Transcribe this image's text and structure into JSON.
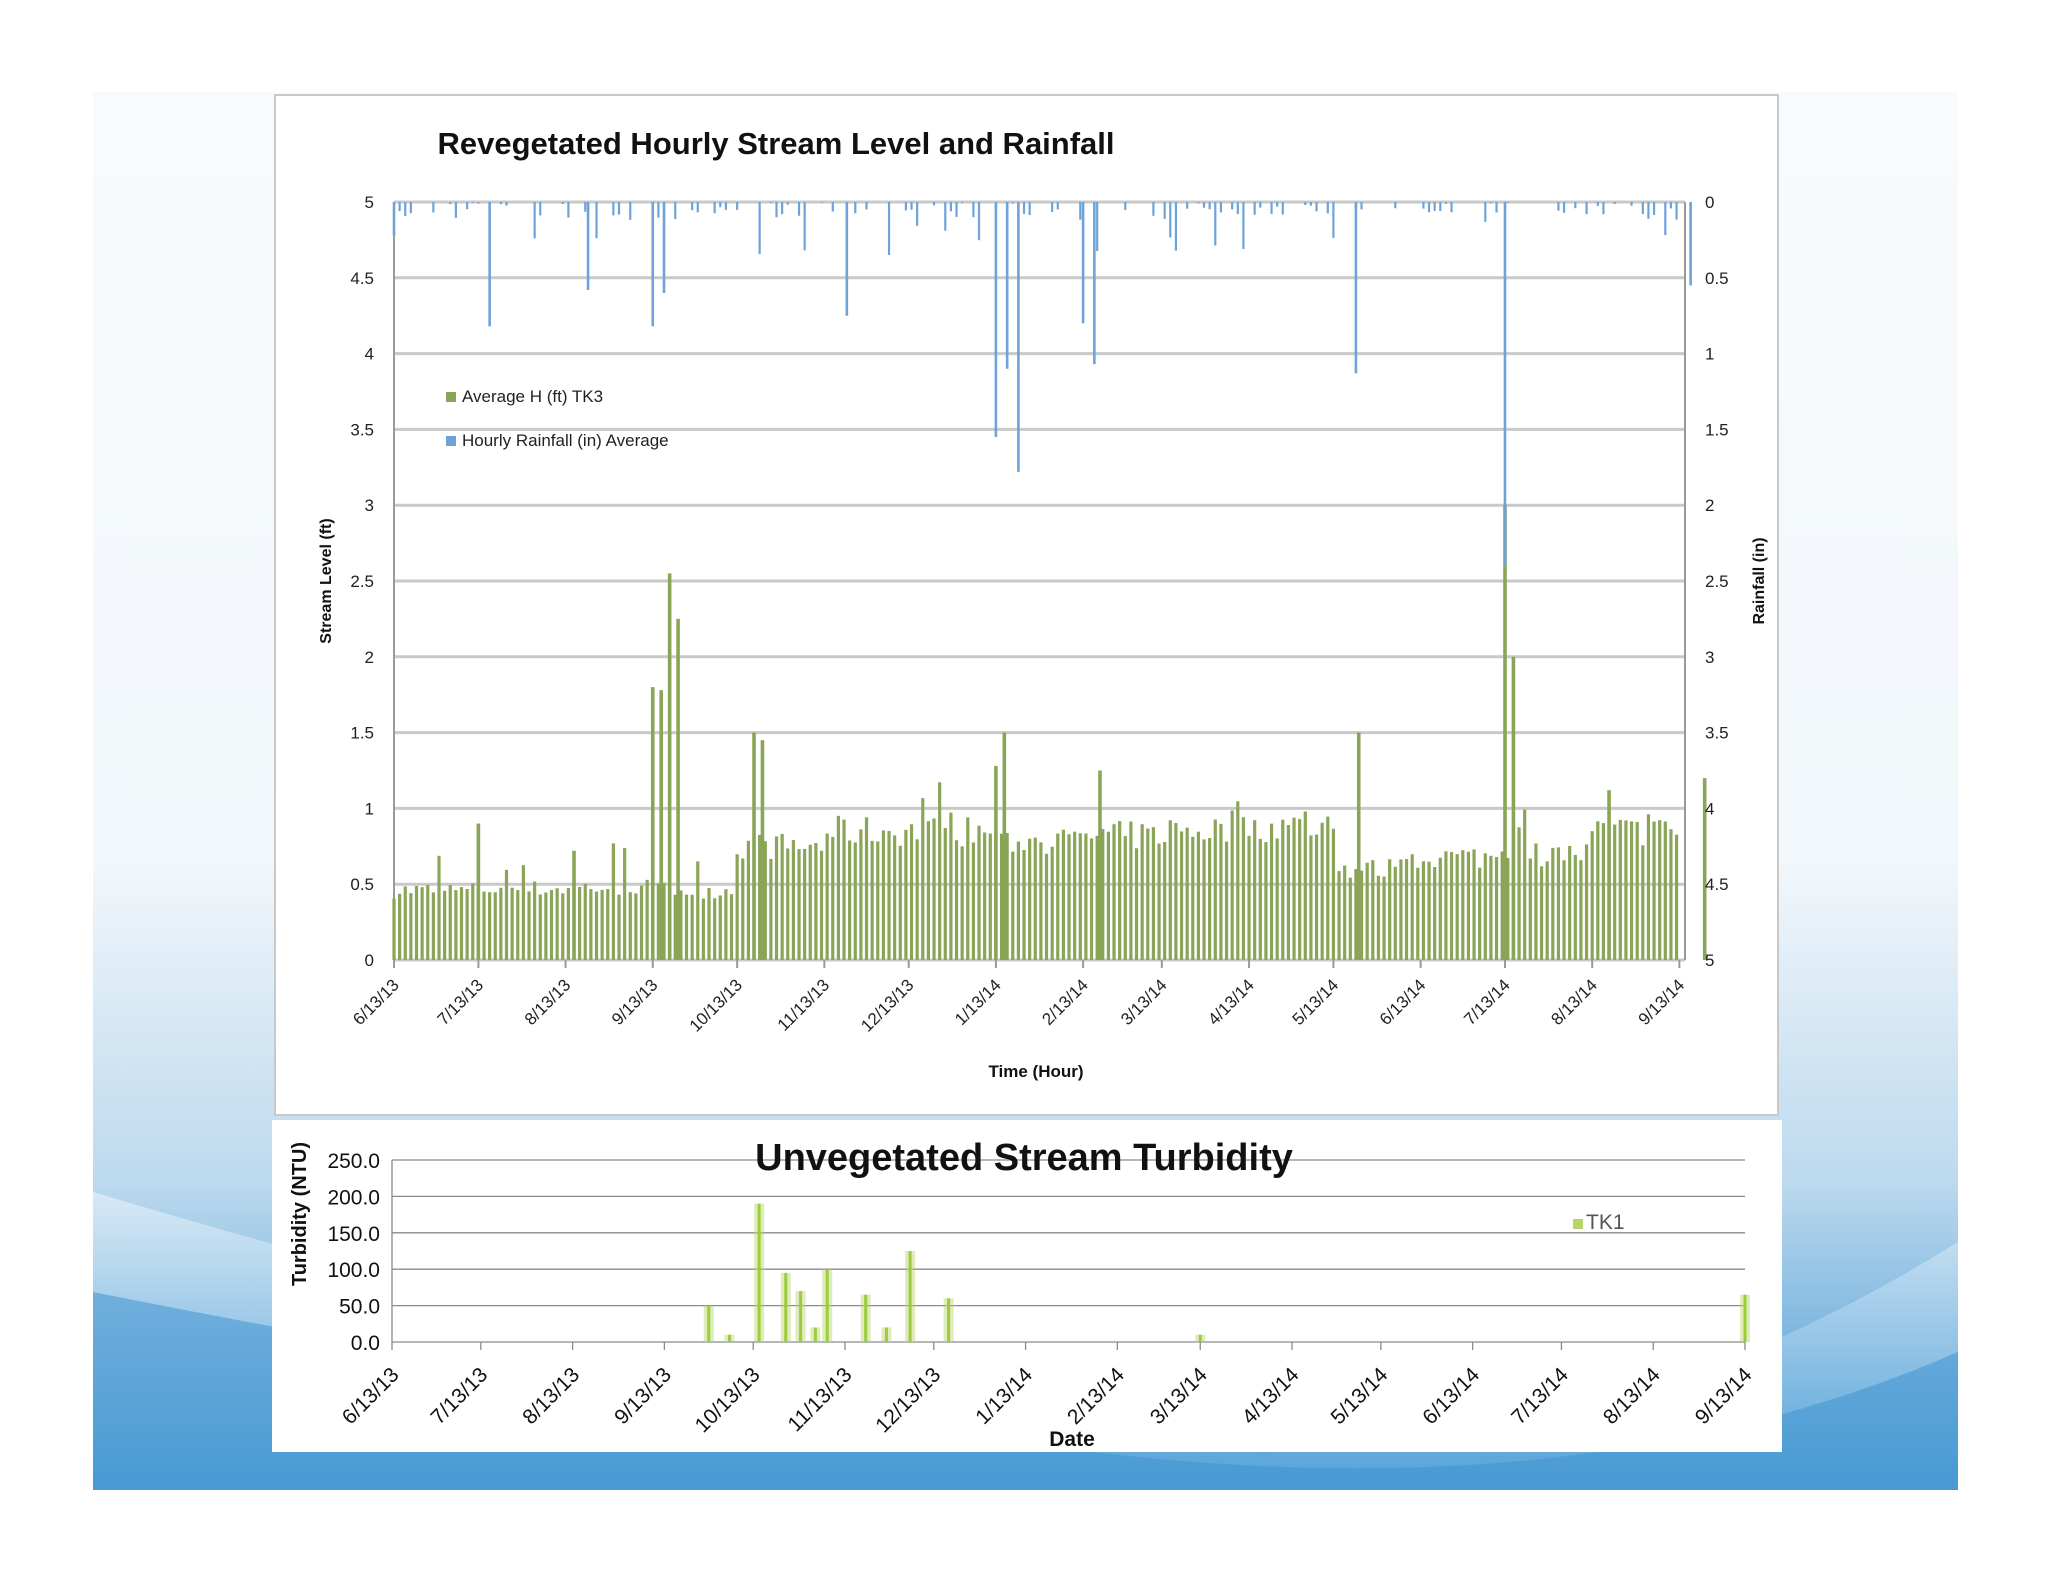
{
  "chart_data": [
    {
      "type": "bar",
      "title": "Revegetated Hourly Stream Level and Rainfall",
      "xlabel": "Time (Hour)",
      "ylabel": "Stream Level (ft)",
      "y2label": "Rainfall (in)",
      "ylim": [
        0,
        5
      ],
      "y2lim": [
        0,
        5
      ],
      "y2_reversed": true,
      "yticks": [
        "0",
        "0.5",
        "1",
        "1.5",
        "2",
        "2.5",
        "3",
        "3.5",
        "4",
        "4.5",
        "5"
      ],
      "y2ticks": [
        "5",
        "4.5",
        "4",
        "3.5",
        "3",
        "2.5",
        "2",
        "1.5",
        "1",
        "0.5",
        "0"
      ],
      "categories": [
        "6/13/13",
        "7/13/13",
        "8/13/13",
        "9/13/13",
        "10/13/13",
        "11/13/13",
        "12/13/13",
        "1/13/14",
        "2/13/14",
        "3/13/14",
        "4/13/14",
        "5/13/14",
        "6/13/14",
        "7/13/14",
        "8/13/14",
        "9/13/14"
      ],
      "legend_position": "top-left",
      "grid": true,
      "series": [
        {
          "name": "Average H (ft) TK3",
          "axis": "left",
          "color": "#8aa557",
          "baseline_by_month": [
            0.46,
            0.47,
            0.48,
            0.46,
            0.75,
            0.85,
            0.85,
            0.78,
            0.82,
            0.86,
            0.88,
            0.6,
            0.68,
            0.7,
            0.85,
            0.75
          ],
          "peaks": [
            {
              "date": "7/13/13",
              "value": 0.9
            },
            {
              "date": "8/13/13",
              "value": 0.72
            },
            {
              "date": "9/13/13",
              "value": 2.55
            },
            {
              "date": "9/13/13",
              "value": 2.25
            },
            {
              "date": "9/13/13",
              "value": 1.8
            },
            {
              "date": "9/13/13",
              "value": 1.78
            },
            {
              "date": "10/13/13",
              "value": 1.5
            },
            {
              "date": "10/13/13",
              "value": 1.45
            },
            {
              "date": "1/13/14",
              "value": 1.28
            },
            {
              "date": "1/13/14",
              "value": 1.5
            },
            {
              "date": "2/13/14",
              "value": 1.25
            },
            {
              "date": "5/13/14",
              "value": 1.5
            },
            {
              "date": "7/13/14",
              "value": 3.0
            },
            {
              "date": "7/13/14",
              "value": 2.0
            },
            {
              "date": "8/13/14",
              "value": 1.12
            },
            {
              "date": "9/13/14",
              "value": 1.2
            }
          ]
        },
        {
          "name": "Hourly Rainfall (in) Average",
          "axis": "right",
          "color": "#6ea3d8",
          "peaks": [
            {
              "date": "6/13/13",
              "value": 0.22
            },
            {
              "date": "7/13/13",
              "value": 0.82
            },
            {
              "date": "8/13/13",
              "value": 0.58
            },
            {
              "date": "9/13/13",
              "value": 0.82
            },
            {
              "date": "9/13/13",
              "value": 0.6
            },
            {
              "date": "11/13/13",
              "value": 0.75
            },
            {
              "date": "1/13/14",
              "value": 1.55
            },
            {
              "date": "1/13/14",
              "value": 1.1
            },
            {
              "date": "1/13/14",
              "value": 1.78
            },
            {
              "date": "2/13/14",
              "value": 0.8
            },
            {
              "date": "2/13/14",
              "value": 1.07
            },
            {
              "date": "5/13/14",
              "value": 1.13
            },
            {
              "date": "7/13/14",
              "value": 2.4
            },
            {
              "date": "9/13/14",
              "value": 0.55
            }
          ]
        }
      ]
    },
    {
      "type": "bar",
      "title": "Unvegetated Stream Turbidity",
      "xlabel": "Date",
      "ylabel": "Turbidity (NTU)",
      "ylim": [
        0,
        250
      ],
      "yticks": [
        "0.0",
        "50.0",
        "100.0",
        "150.0",
        "200.0",
        "250.0"
      ],
      "categories": [
        "6/13/13",
        "7/13/13",
        "8/13/13",
        "9/13/13",
        "10/13/13",
        "11/13/13",
        "12/13/13",
        "1/13/14",
        "2/13/14",
        "3/13/14",
        "4/13/14",
        "5/13/14",
        "6/13/14",
        "7/13/14",
        "8/13/14",
        "9/13/14"
      ],
      "legend_position": "right",
      "grid": true,
      "series": [
        {
          "name": "TK1",
          "color": "#b5d56a",
          "points": [
            {
              "date": "9/28/13",
              "value": 50
            },
            {
              "date": "10/5/13",
              "value": 10
            },
            {
              "date": "10/15/13",
              "value": 190
            },
            {
              "date": "10/24/13",
              "value": 95
            },
            {
              "date": "10/29/13",
              "value": 70
            },
            {
              "date": "11/3/13",
              "value": 20
            },
            {
              "date": "11/7/13",
              "value": 100
            },
            {
              "date": "11/20/13",
              "value": 65
            },
            {
              "date": "11/27/13",
              "value": 20
            },
            {
              "date": "12/5/13",
              "value": 125
            },
            {
              "date": "12/18/13",
              "value": 60
            },
            {
              "date": "3/13/14",
              "value": 10
            },
            {
              "date": "9/13/14",
              "value": 65
            }
          ]
        }
      ]
    }
  ]
}
